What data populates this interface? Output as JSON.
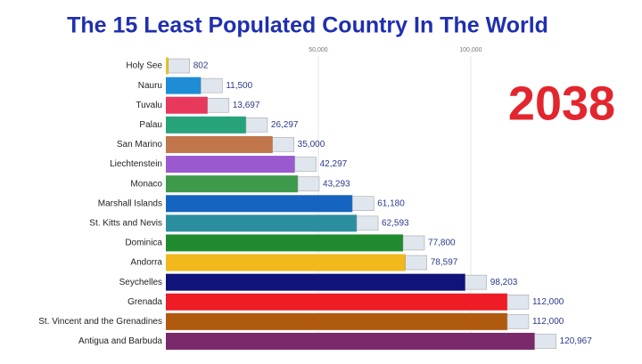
{
  "chart_data": {
    "type": "bar",
    "orientation": "horizontal",
    "title": "The 15 Least Populated Country In The World",
    "annotation": "2038",
    "categories": [
      "Holy See",
      "Nauru",
      "Tuvalu",
      "Palau",
      "San Marino",
      "Liechtenstein",
      "Monaco",
      "Marshall Islands",
      "St. Kitts and Nevis",
      "Dominica",
      "Andorra",
      "Seychelles",
      "Grenada",
      "St. Vincent and the Grenadines",
      "Antigua and Barbuda"
    ],
    "values": [
      802,
      11500,
      13697,
      26297,
      35000,
      42297,
      43293,
      61180,
      62593,
      77800,
      78597,
      98203,
      112000,
      112000,
      120967
    ],
    "value_labels": [
      "802",
      "11,500",
      "13,697",
      "26,297",
      "35,000",
      "42,297",
      "43,293",
      "61,180",
      "62,593",
      "77,800",
      "78,597",
      "98,203",
      "112,000",
      "112,000",
      "120,967"
    ],
    "colors": [
      "#f0c419",
      "#1f8dd6",
      "#e8385c",
      "#27a37a",
      "#c0754a",
      "#9b59d0",
      "#3e9a4a",
      "#1565c0",
      "#2c8fa0",
      "#1f8a2e",
      "#f2b81c",
      "#10137a",
      "#ee1c25",
      "#b05a10",
      "#7a2a6a"
    ],
    "xlim": [
      0,
      155000
    ],
    "xticks": [
      {
        "value": 50000,
        "label": "50,000"
      },
      {
        "value": 100000,
        "label": "100,000"
      }
    ],
    "grid": true
  }
}
